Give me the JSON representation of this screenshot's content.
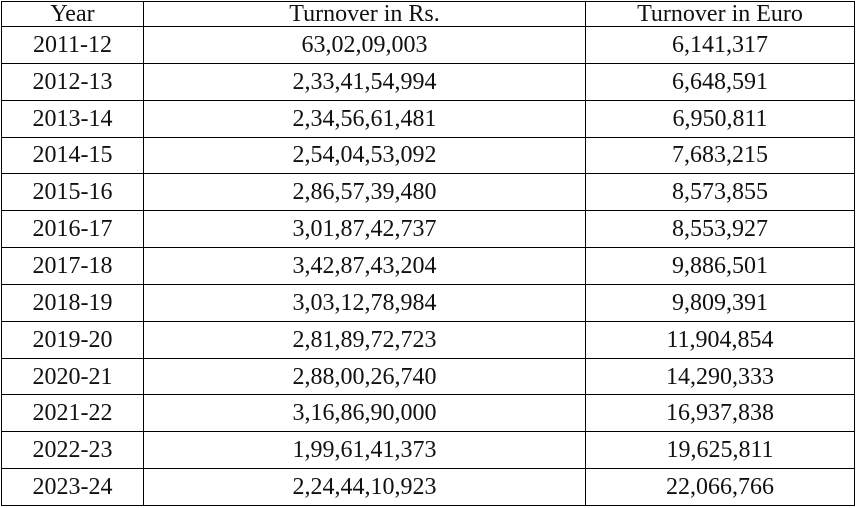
{
  "table": {
    "header": [
      "Year",
      "Turnover in Rs.",
      "Turnover in Euro"
    ],
    "rows": [
      [
        "2011-12",
        "63,02,09,003",
        "6,141,317"
      ],
      [
        "2012-13",
        "2,33,41,54,994",
        "6,648,591"
      ],
      [
        "2013-14",
        "2,34,56,61,481",
        "6,950,811"
      ],
      [
        "2014-15",
        "2,54,04,53,092",
        "7,683,215"
      ],
      [
        "2015-16",
        "2,86,57,39,480",
        "8,573,855"
      ],
      [
        "2016-17",
        "3,01,87,42,737",
        "8,553,927"
      ],
      [
        "2017-18",
        "3,42,87,43,204",
        "9,886,501"
      ],
      [
        "2018-19",
        "3,03,12,78,984",
        "9,809,391"
      ],
      [
        "2019-20",
        "2,81,89,72,723",
        "11,904,854"
      ],
      [
        "2020-21",
        "2,88,00,26,740",
        "14,290,333"
      ],
      [
        "2021-22",
        "3,16,86,90,000",
        "16,937,838"
      ],
      [
        "2022-23",
        "1,99,61,41,373",
        "19,625,811"
      ],
      [
        "2023-24",
        "2,24,44,10,923",
        "22,066,766"
      ]
    ]
  }
}
